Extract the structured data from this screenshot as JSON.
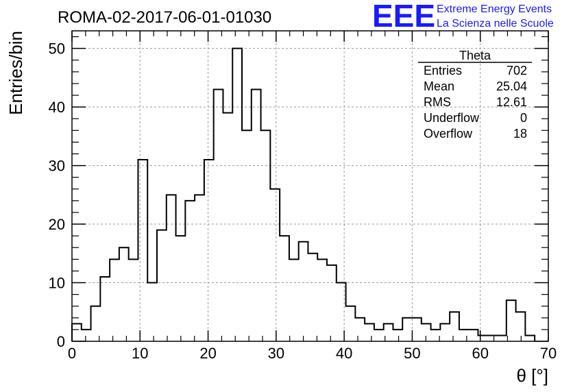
{
  "chart_data": {
    "type": "bar",
    "title": "ROMA-02-2017-06-01-01030",
    "xlabel": "θ [°]",
    "ylabel": "Entries/bin",
    "xlim": [
      0,
      70
    ],
    "ylim": [
      0,
      53
    ],
    "x_ticks": [
      "0",
      "10",
      "20",
      "30",
      "40",
      "50",
      "60",
      "70"
    ],
    "y_ticks": [
      "0",
      "10",
      "20",
      "30",
      "40",
      "50"
    ],
    "grid": true,
    "bin_width": 1.5,
    "bin_edges": [
      0,
      68
    ],
    "values": [
      3,
      2,
      6,
      11,
      14,
      16,
      14,
      31,
      10,
      19,
      25,
      18,
      24,
      25,
      31,
      43,
      39,
      50,
      36,
      43,
      36,
      26,
      18,
      14,
      17,
      15,
      14,
      13,
      10,
      6,
      4,
      3,
      2,
      3,
      2,
      4,
      4,
      3,
      2,
      3,
      5,
      2,
      2,
      1,
      1,
      1,
      7,
      5,
      1
    ],
    "stats": {
      "name": "Theta",
      "rows": [
        {
          "label": "Entries",
          "value": "702"
        },
        {
          "label": "Mean",
          "value": "25.04"
        },
        {
          "label": "RMS",
          "value": "12.61"
        },
        {
          "label": "Underflow",
          "value": "0"
        },
        {
          "label": "Overflow",
          "value": "18"
        }
      ]
    }
  },
  "logo": {
    "text": "EEE",
    "line1": "Extreme Energy Events",
    "line2": "La Scienza nelle Scuole",
    "color": "#1a1aff"
  },
  "colors": {
    "histogram": "#000000",
    "grid": "#999999"
  }
}
